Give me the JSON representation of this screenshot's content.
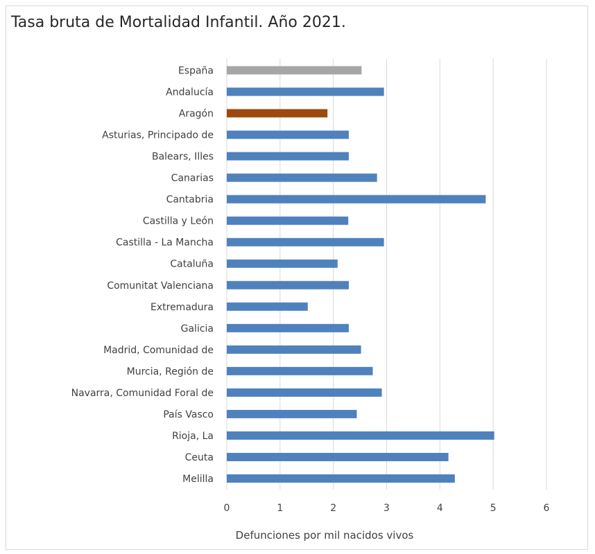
{
  "chart_data": {
    "type": "bar",
    "orientation": "horizontal",
    "title": "Tasa bruta de Mortalidad Infantil. Año 2021.",
    "xlabel": "Defunciones por mil nacidos vivos",
    "ylabel": "",
    "xlim": [
      0,
      6
    ],
    "xticks": [
      "0",
      "1",
      "2",
      "3",
      "4",
      "5",
      "6"
    ],
    "grid": "vertical",
    "legend": "none",
    "categories": [
      "España",
      "Andalucía",
      "Aragón",
      "Asturias, Principado de",
      "Balears, Illes",
      "Canarias",
      "Cantabria",
      "Castilla y León",
      "Castilla - La Mancha",
      "Cataluña",
      "Comunitat Valenciana",
      "Extremadura",
      "Galicia",
      "Madrid, Comunidad de",
      "Murcia, Región de",
      "Navarra, Comunidad Foral de",
      "País Vasco",
      "Rioja, La",
      "Ceuta",
      "Melilla"
    ],
    "values": [
      2.53,
      2.95,
      1.89,
      2.29,
      2.29,
      2.82,
      4.86,
      2.28,
      2.95,
      2.08,
      2.29,
      1.52,
      2.29,
      2.52,
      2.74,
      2.91,
      2.44,
      5.02,
      4.16,
      4.28
    ],
    "colors": {
      "default": "#4f81bd",
      "España": "#a6a6a6",
      "Aragón": "#9c4a0e"
    }
  }
}
